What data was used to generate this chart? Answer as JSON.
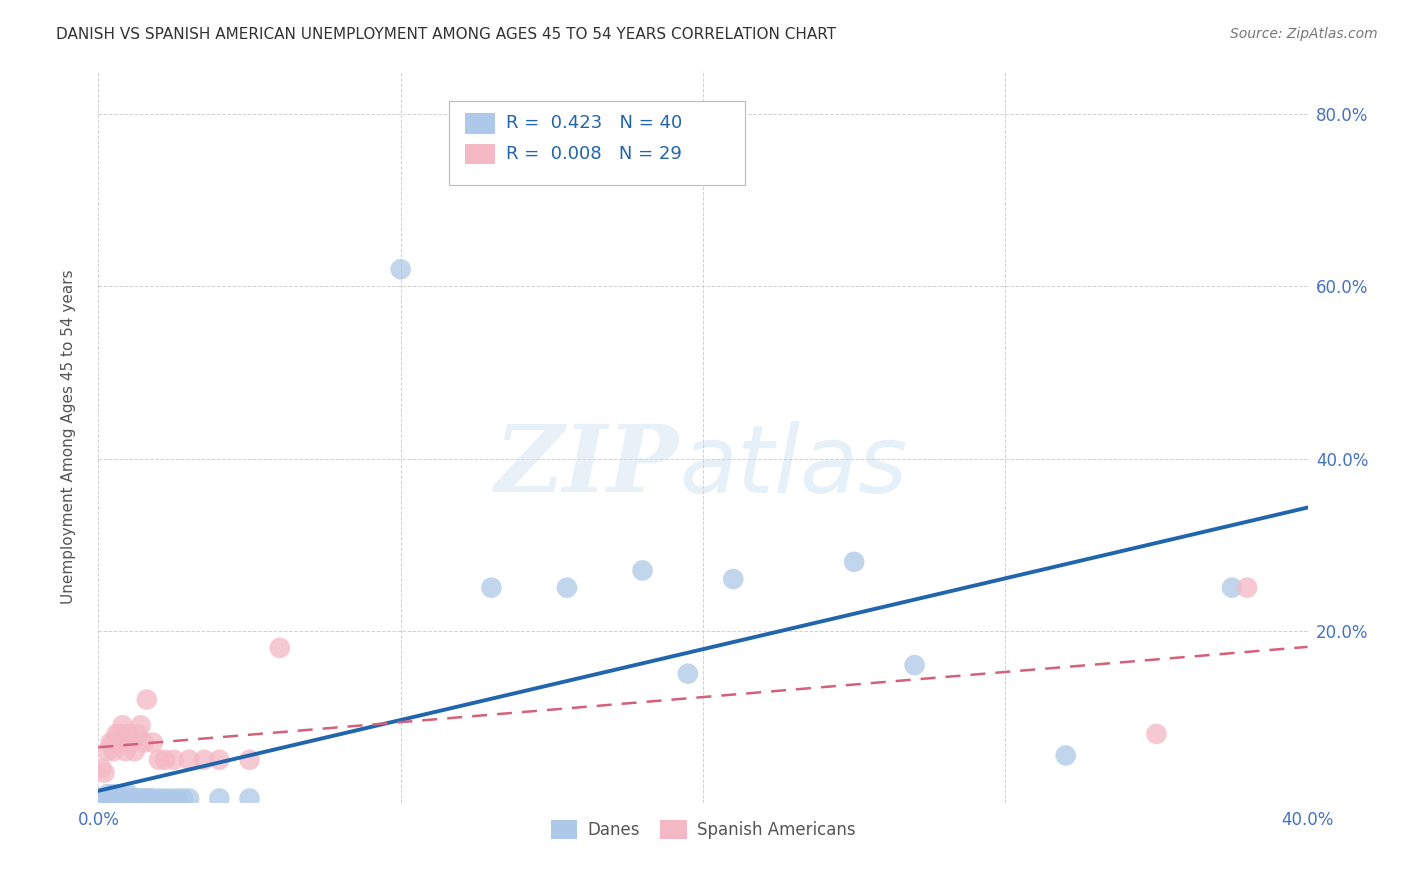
{
  "title": "DANISH VS SPANISH AMERICAN UNEMPLOYMENT AMONG AGES 45 TO 54 YEARS CORRELATION CHART",
  "source": "Source: ZipAtlas.com",
  "ylabel": "Unemployment Among Ages 45 to 54 years",
  "xlim": [
    0.0,
    0.4
  ],
  "ylim": [
    0.0,
    0.85
  ],
  "x_ticks": [
    0.0,
    0.1,
    0.2,
    0.3,
    0.4
  ],
  "x_tick_labels": [
    "0.0%",
    "",
    "",
    "",
    "40.0%"
  ],
  "y_ticks": [
    0.0,
    0.2,
    0.4,
    0.6,
    0.8
  ],
  "y_tick_labels_right": [
    "",
    "20.0%",
    "40.0%",
    "60.0%",
    "80.0%"
  ],
  "danes_R": 0.423,
  "danes_N": 40,
  "spanish_R": 0.008,
  "spanish_N": 29,
  "danes_color": "#adc8e8",
  "danes_line_color": "#2166ac",
  "spanish_color": "#f4b8c4",
  "spanish_line_color": "#d4607a",
  "danes_x": [
    0.001,
    0.002,
    0.003,
    0.003,
    0.004,
    0.005,
    0.005,
    0.006,
    0.007,
    0.007,
    0.008,
    0.009,
    0.01,
    0.01,
    0.011,
    0.012,
    0.013,
    0.014,
    0.015,
    0.016,
    0.017,
    0.018,
    0.02,
    0.022,
    0.024,
    0.026,
    0.028,
    0.03,
    0.04,
    0.05,
    0.1,
    0.13,
    0.155,
    0.18,
    0.195,
    0.21,
    0.25,
    0.27,
    0.32,
    0.375
  ],
  "danes_y": [
    0.005,
    0.005,
    0.01,
    0.005,
    0.005,
    0.005,
    0.01,
    0.005,
    0.005,
    0.01,
    0.005,
    0.005,
    0.005,
    0.01,
    0.005,
    0.005,
    0.005,
    0.005,
    0.005,
    0.005,
    0.005,
    0.005,
    0.005,
    0.005,
    0.005,
    0.005,
    0.005,
    0.005,
    0.005,
    0.005,
    0.62,
    0.25,
    0.25,
    0.27,
    0.15,
    0.26,
    0.28,
    0.16,
    0.055,
    0.25
  ],
  "spanish_x": [
    0.001,
    0.002,
    0.003,
    0.004,
    0.005,
    0.005,
    0.006,
    0.007,
    0.007,
    0.008,
    0.009,
    0.01,
    0.011,
    0.012,
    0.013,
    0.014,
    0.015,
    0.016,
    0.018,
    0.02,
    0.022,
    0.025,
    0.03,
    0.035,
    0.04,
    0.05,
    0.06,
    0.35,
    0.38
  ],
  "spanish_y": [
    0.04,
    0.035,
    0.06,
    0.07,
    0.06,
    0.07,
    0.08,
    0.07,
    0.08,
    0.09,
    0.06,
    0.08,
    0.07,
    0.06,
    0.08,
    0.09,
    0.07,
    0.12,
    0.07,
    0.05,
    0.05,
    0.05,
    0.05,
    0.05,
    0.05,
    0.05,
    0.18,
    0.08,
    0.25
  ],
  "watermark_zip": "ZIP",
  "watermark_atlas": "atlas",
  "background_color": "#ffffff",
  "grid_color": "#cccccc",
  "legend_patch_color_blue": "#adc8e8",
  "legend_patch_color_pink": "#f4b8c4",
  "legend_text_color": "#2166ac"
}
